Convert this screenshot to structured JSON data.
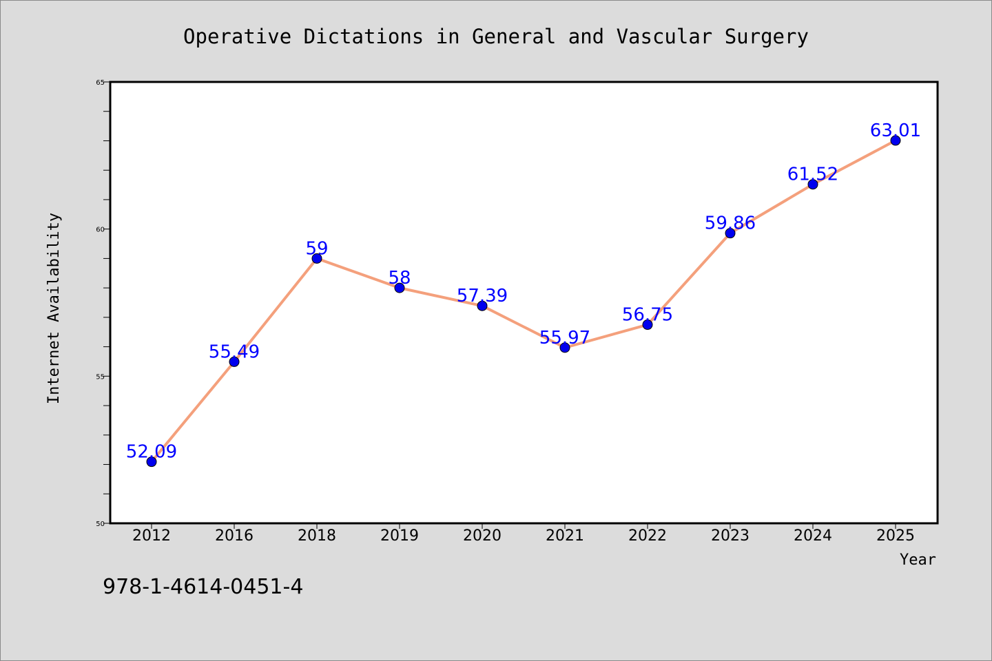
{
  "chart_data": {
    "type": "line",
    "title": "Operative Dictations in General and Vascular Surgery",
    "xlabel": "Year",
    "ylabel": "Internet Availability",
    "categories": [
      "2012",
      "2016",
      "2018",
      "2019",
      "2020",
      "2021",
      "2022",
      "2023",
      "2024",
      "2025"
    ],
    "series": [
      {
        "values": [
          52.09,
          55.49,
          59,
          58,
          57.39,
          55.97,
          56.75,
          59.86,
          61.52,
          63.01
        ],
        "labels": [
          "52.09",
          "55.49",
          "59",
          "58",
          "57.39",
          "55.97",
          "56.75",
          "59.86",
          "61.52",
          "63.01"
        ],
        "line_color": "#f4a07c",
        "marker_color": "#0000ee",
        "label_color": "#0000ff"
      }
    ],
    "ylim": [
      50,
      65
    ],
    "yticks": [
      "50",
      "55",
      "60",
      "65"
    ],
    "y_minor_step": 1,
    "grid": false,
    "legend": "none"
  },
  "footer": {
    "isbn": "978-1-4614-0451-4"
  },
  "colors": {
    "background": "#dcdcdc",
    "plot_area": "#ffffff",
    "axis": "#000000"
  }
}
